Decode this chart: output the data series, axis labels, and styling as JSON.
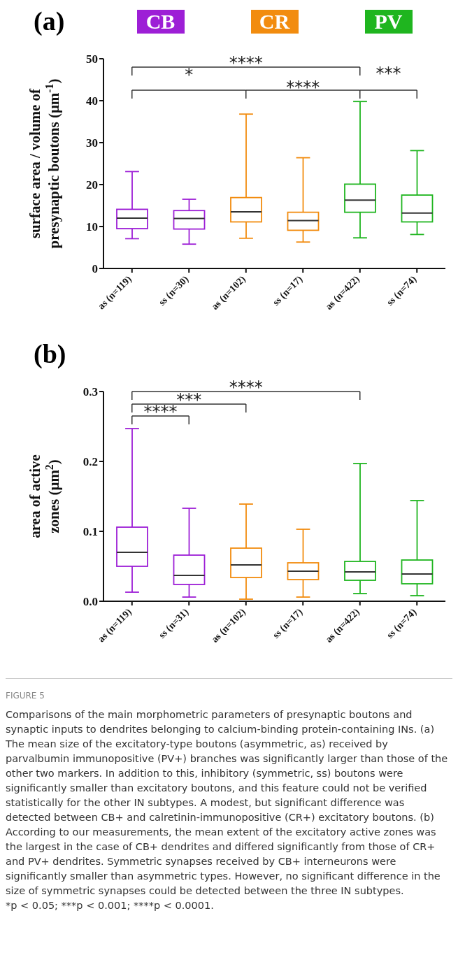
{
  "chart_data": [
    {
      "type": "box",
      "title": "(a)",
      "ylabel": "surface area / volume of presynaptic boutons (μm$^{-1}$)",
      "categories": [
        "as (n=119)",
        "ss (n=30)",
        "as (n=102)",
        "ss (n=17)",
        "as (n=422)",
        "ss (n=74)"
      ],
      "colors": [
        "#9d1fd6",
        "#9d1fd6",
        "#f28c0f",
        "#f28c0f",
        "#1fb51f",
        "#1fb51f"
      ],
      "boxes": [
        {
          "low": 7.1,
          "q1": 9.5,
          "median": 12.0,
          "q3": 14.1,
          "high": 23.1
        },
        {
          "low": 5.8,
          "q1": 9.4,
          "median": 11.9,
          "q3": 13.8,
          "high": 16.5
        },
        {
          "low": 7.2,
          "q1": 11.1,
          "median": 13.5,
          "q3": 16.9,
          "high": 36.8
        },
        {
          "low": 6.3,
          "q1": 9.1,
          "median": 11.4,
          "q3": 13.4,
          "high": 26.4
        },
        {
          "low": 7.3,
          "q1": 13.4,
          "median": 16.3,
          "q3": 20.1,
          "high": 39.8
        },
        {
          "low": 8.1,
          "q1": 11.1,
          "median": 13.2,
          "q3": 17.5,
          "high": 28.1
        }
      ],
      "ylim": [
        0,
        50
      ],
      "yticks": [
        0,
        10,
        20,
        30,
        40,
        50
      ],
      "grid": false,
      "annotations": [
        "CB",
        "CR",
        "PV",
        "****",
        "*",
        "****",
        "***"
      ]
    },
    {
      "type": "box",
      "title": "(b)",
      "ylabel": "area of  active zones (μm$^{2}$)",
      "categories": [
        "as (n=119)",
        "ss (n=31)",
        "as (n=102)",
        "ss (n=17)",
        "as (n=422)",
        "ss (n=74)"
      ],
      "colors": [
        "#9d1fd6",
        "#9d1fd6",
        "#f28c0f",
        "#f28c0f",
        "#1fb51f",
        "#1fb51f"
      ],
      "boxes": [
        {
          "low": 0.013,
          "q1": 0.05,
          "median": 0.07,
          "q3": 0.106,
          "high": 0.247
        },
        {
          "low": 0.006,
          "q1": 0.024,
          "median": 0.037,
          "q3": 0.066,
          "high": 0.133
        },
        {
          "low": 0.003,
          "q1": 0.034,
          "median": 0.052,
          "q3": 0.076,
          "high": 0.139
        },
        {
          "low": 0.006,
          "q1": 0.031,
          "median": 0.043,
          "q3": 0.055,
          "high": 0.103
        },
        {
          "low": 0.011,
          "q1": 0.03,
          "median": 0.042,
          "q3": 0.057,
          "high": 0.197
        },
        {
          "low": 0.008,
          "q1": 0.025,
          "median": 0.039,
          "q3": 0.059,
          "high": 0.144
        }
      ],
      "ylim": [
        0,
        0.3
      ],
      "yticks": [
        {
          "value": 0,
          "label": "0.0"
        },
        {
          "value": 0.1,
          "label": "0.1"
        },
        {
          "value": 0.2,
          "label": "0.2"
        },
        {
          "value": 0.3,
          "label": "0.3"
        }
      ],
      "grid": false,
      "annotations": [
        "****",
        "***",
        "****",
        "FIGURE 5",
        "Comparisons of the main morphometric parameters of presynaptic boutons and synaptic inputs to dendrites belonging to calcium-binding protein-containing INs. (a) The mean size of the excitatory-type boutons (asymmetric, as) received by parvalbumin immunopositive (PV+) branches was significantly larger than those of the other two markers. In addition to this, inhibitory (symmetric, ss) boutons were significantly smaller than excitatory boutons, and this feature could not be verified statistically for the other IN subtypes. A modest, but significant difference was detected between CB+ and calretinin-immunopositive (CR+) excitatory boutons. (b) According to our measurements, the mean extent of the excitatory active zones was the largest in the case of CB+ dendrites and differed significantly from those of CR+ and PV+ dendrites. Symmetric synapses received by CB+ interneurons were significantly smaller than asymmetric types. However, no significant difference in the size of symmetric synapses could be detected between the three IN subtypes.",
        "*p < 0.05; ***p < 0.001; ****p < 0.0001."
      ]
    }
  ]
}
